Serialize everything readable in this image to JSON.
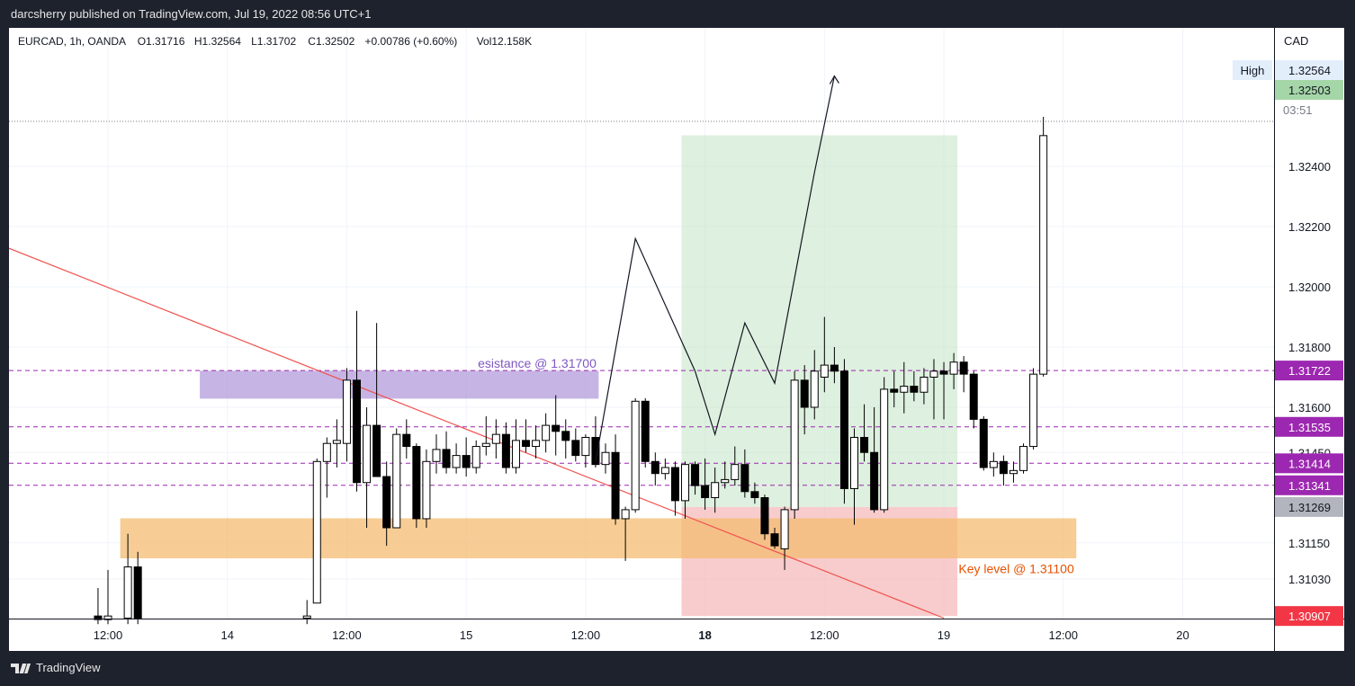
{
  "header": {
    "publisher_line": "darcsherry published on TradingView.com, Jul 19, 2022 08:56 UTC+1"
  },
  "footer": {
    "brand": "TradingView"
  },
  "chart_data": {
    "type": "candlestick",
    "symbol": "EURCAD, 1h, OANDA",
    "ohlc_legend": {
      "o": "O1.31716",
      "h": "H1.32564",
      "l": "L1.31702",
      "c": "C1.32502",
      "change": "+0.00786 (+0.60%)",
      "vol": "Vol12.158K"
    },
    "currency": "CAD",
    "ylim": [
      1.309,
      1.3273
    ],
    "y_ticks": [
      "1.32400",
      "1.32200",
      "1.32000",
      "1.31800",
      "1.31600",
      "1.31450",
      "1.31150",
      "1.31030"
    ],
    "x_ticks": [
      {
        "label": "12:00",
        "idx": 0,
        "bold": false
      },
      {
        "label": "14",
        "idx": 12,
        "bold": false
      },
      {
        "label": "12:00",
        "idx": 24,
        "bold": false
      },
      {
        "label": "15",
        "idx": 36,
        "bold": false
      },
      {
        "label": "12:00",
        "idx": 48,
        "bold": false
      },
      {
        "label": "18",
        "idx": 60,
        "bold": true
      },
      {
        "label": "12:00",
        "idx": 72,
        "bold": false
      },
      {
        "label": "19",
        "idx": 84,
        "bold": false
      },
      {
        "label": "12:00",
        "idx": 96,
        "bold": false
      },
      {
        "label": "20",
        "idx": 108,
        "bold": false
      }
    ],
    "candles": [
      {
        "i": -1,
        "o": 1.30907,
        "h": 1.31,
        "l": 1.3088,
        "c": 1.30895
      },
      {
        "i": 0,
        "o": 1.30895,
        "h": 1.3106,
        "l": 1.3088,
        "c": 1.30907
      },
      {
        "i": 2,
        "o": 1.309,
        "h": 1.3118,
        "l": 1.3088,
        "c": 1.3107
      },
      {
        "i": 3,
        "o": 1.3107,
        "h": 1.3112,
        "l": 1.3088,
        "c": 1.309
      },
      {
        "i": 20,
        "o": 1.309,
        "h": 1.3096,
        "l": 1.3088,
        "c": 1.30907
      },
      {
        "i": 21,
        "o": 1.3095,
        "h": 1.3143,
        "l": 1.3095,
        "c": 1.3142
      },
      {
        "i": 22,
        "o": 1.3142,
        "h": 1.315,
        "l": 1.313,
        "c": 1.3148
      },
      {
        "i": 23,
        "o": 1.3148,
        "h": 1.3156,
        "l": 1.314,
        "c": 1.3149
      },
      {
        "i": 24,
        "o": 1.3148,
        "h": 1.3173,
        "l": 1.3142,
        "c": 1.3169
      },
      {
        "i": 25,
        "o": 1.3169,
        "h": 1.3192,
        "l": 1.3132,
        "c": 1.3135
      },
      {
        "i": 26,
        "o": 1.3135,
        "h": 1.316,
        "l": 1.312,
        "c": 1.3154
      },
      {
        "i": 27,
        "o": 1.3154,
        "h": 1.3188,
        "l": 1.3137,
        "c": 1.3137
      },
      {
        "i": 28,
        "o": 1.3137,
        "h": 1.3142,
        "l": 1.3114,
        "c": 1.312
      },
      {
        "i": 29,
        "o": 1.312,
        "h": 1.3153,
        "l": 1.312,
        "c": 1.3151
      },
      {
        "i": 30,
        "o": 1.3151,
        "h": 1.3156,
        "l": 1.3143,
        "c": 1.3147
      },
      {
        "i": 31,
        "o": 1.3147,
        "h": 1.3148,
        "l": 1.312,
        "c": 1.3123
      },
      {
        "i": 32,
        "o": 1.3123,
        "h": 1.3146,
        "l": 1.312,
        "c": 1.3142
      },
      {
        "i": 33,
        "o": 1.3142,
        "h": 1.3151,
        "l": 1.3138,
        "c": 1.3146
      },
      {
        "i": 34,
        "o": 1.3146,
        "h": 1.3152,
        "l": 1.3138,
        "c": 1.314
      },
      {
        "i": 35,
        "o": 1.314,
        "h": 1.3148,
        "l": 1.3138,
        "c": 1.3144
      },
      {
        "i": 36,
        "o": 1.3144,
        "h": 1.315,
        "l": 1.3137,
        "c": 1.314
      },
      {
        "i": 37,
        "o": 1.314,
        "h": 1.3149,
        "l": 1.3138,
        "c": 1.3147
      },
      {
        "i": 38,
        "o": 1.3147,
        "h": 1.3157,
        "l": 1.3144,
        "c": 1.3148
      },
      {
        "i": 39,
        "o": 1.3148,
        "h": 1.3156,
        "l": 1.3143,
        "c": 1.3151
      },
      {
        "i": 40,
        "o": 1.3151,
        "h": 1.3155,
        "l": 1.3138,
        "c": 1.314
      },
      {
        "i": 41,
        "o": 1.314,
        "h": 1.3156,
        "l": 1.3138,
        "c": 1.3149
      },
      {
        "i": 42,
        "o": 1.3149,
        "h": 1.3156,
        "l": 1.3145,
        "c": 1.3147
      },
      {
        "i": 43,
        "o": 1.3147,
        "h": 1.3154,
        "l": 1.3143,
        "c": 1.3149
      },
      {
        "i": 44,
        "o": 1.3149,
        "h": 1.3158,
        "l": 1.3145,
        "c": 1.3154
      },
      {
        "i": 45,
        "o": 1.3154,
        "h": 1.3164,
        "l": 1.3144,
        "c": 1.3152
      },
      {
        "i": 46,
        "o": 1.3152,
        "h": 1.3156,
        "l": 1.3143,
        "c": 1.3149
      },
      {
        "i": 47,
        "o": 1.3149,
        "h": 1.3153,
        "l": 1.3142,
        "c": 1.3144
      },
      {
        "i": 48,
        "o": 1.3144,
        "h": 1.3151,
        "l": 1.314,
        "c": 1.315
      },
      {
        "i": 49,
        "o": 1.315,
        "h": 1.3157,
        "l": 1.314,
        "c": 1.3141
      },
      {
        "i": 50,
        "o": 1.3141,
        "h": 1.3148,
        "l": 1.3138,
        "c": 1.3145
      },
      {
        "i": 51,
        "o": 1.3145,
        "h": 1.3151,
        "l": 1.3121,
        "c": 1.3123
      },
      {
        "i": 52,
        "o": 1.3123,
        "h": 1.3127,
        "l": 1.3109,
        "c": 1.3126
      },
      {
        "i": 53,
        "o": 1.3126,
        "h": 1.3163,
        "l": 1.3125,
        "c": 1.3162
      },
      {
        "i": 54,
        "o": 1.3162,
        "h": 1.3163,
        "l": 1.314,
        "c": 1.3142
      },
      {
        "i": 55,
        "o": 1.3142,
        "h": 1.3145,
        "l": 1.3134,
        "c": 1.3138
      },
      {
        "i": 56,
        "o": 1.3138,
        "h": 1.3143,
        "l": 1.3136,
        "c": 1.314
      },
      {
        "i": 57,
        "o": 1.314,
        "h": 1.3142,
        "l": 1.3124,
        "c": 1.3129
      },
      {
        "i": 58,
        "o": 1.3129,
        "h": 1.3142,
        "l": 1.3123,
        "c": 1.3141
      },
      {
        "i": 59,
        "o": 1.3141,
        "h": 1.3142,
        "l": 1.3131,
        "c": 1.3134
      },
      {
        "i": 60,
        "o": 1.3134,
        "h": 1.3143,
        "l": 1.3126,
        "c": 1.313
      },
      {
        "i": 61,
        "o": 1.313,
        "h": 1.314,
        "l": 1.3125,
        "c": 1.3135
      },
      {
        "i": 62,
        "o": 1.3135,
        "h": 1.3142,
        "l": 1.3133,
        "c": 1.3136
      },
      {
        "i": 63,
        "o": 1.3136,
        "h": 1.3147,
        "l": 1.3134,
        "c": 1.3141
      },
      {
        "i": 64,
        "o": 1.3141,
        "h": 1.3146,
        "l": 1.313,
        "c": 1.3132
      },
      {
        "i": 65,
        "o": 1.3132,
        "h": 1.3135,
        "l": 1.3128,
        "c": 1.313
      },
      {
        "i": 66,
        "o": 1.313,
        "h": 1.3131,
        "l": 1.3116,
        "c": 1.3118
      },
      {
        "i": 67,
        "o": 1.3118,
        "h": 1.312,
        "l": 1.3113,
        "c": 1.3114
      },
      {
        "i": 68,
        "o": 1.3113,
        "h": 1.3127,
        "l": 1.3106,
        "c": 1.3126
      },
      {
        "i": 69,
        "o": 1.3126,
        "h": 1.3172,
        "l": 1.3123,
        "c": 1.3169
      },
      {
        "i": 70,
        "o": 1.3169,
        "h": 1.3174,
        "l": 1.3151,
        "c": 1.316
      },
      {
        "i": 71,
        "o": 1.316,
        "h": 1.3179,
        "l": 1.3156,
        "c": 1.3172
      },
      {
        "i": 72,
        "o": 1.317,
        "h": 1.319,
        "l": 1.3165,
        "c": 1.3174
      },
      {
        "i": 73,
        "o": 1.3174,
        "h": 1.318,
        "l": 1.3168,
        "c": 1.3172
      },
      {
        "i": 74,
        "o": 1.3172,
        "h": 1.3176,
        "l": 1.3128,
        "c": 1.3133
      },
      {
        "i": 75,
        "o": 1.3133,
        "h": 1.3153,
        "l": 1.3121,
        "c": 1.315
      },
      {
        "i": 76,
        "o": 1.315,
        "h": 1.3161,
        "l": 1.3142,
        "c": 1.3145
      },
      {
        "i": 77,
        "o": 1.3145,
        "h": 1.316,
        "l": 1.3125,
        "c": 1.3126
      },
      {
        "i": 78,
        "o": 1.3126,
        "h": 1.317,
        "l": 1.3125,
        "c": 1.3166
      },
      {
        "i": 79,
        "o": 1.3166,
        "h": 1.3172,
        "l": 1.316,
        "c": 1.3165
      },
      {
        "i": 80,
        "o": 1.3165,
        "h": 1.3175,
        "l": 1.3158,
        "c": 1.3167
      },
      {
        "i": 81,
        "o": 1.3167,
        "h": 1.3172,
        "l": 1.3162,
        "c": 1.3165
      },
      {
        "i": 82,
        "o": 1.3165,
        "h": 1.3173,
        "l": 1.3161,
        "c": 1.317
      },
      {
        "i": 83,
        "o": 1.317,
        "h": 1.3176,
        "l": 1.3156,
        "c": 1.3172
      },
      {
        "i": 84,
        "o": 1.3172,
        "h": 1.3175,
        "l": 1.3156,
        "c": 1.3171
      },
      {
        "i": 85,
        "o": 1.3171,
        "h": 1.3178,
        "l": 1.3166,
        "c": 1.3175
      },
      {
        "i": 86,
        "o": 1.3175,
        "h": 1.3177,
        "l": 1.3165,
        "c": 1.3171
      },
      {
        "i": 87,
        "o": 1.3171,
        "h": 1.3172,
        "l": 1.3153,
        "c": 1.3156
      },
      {
        "i": 88,
        "o": 1.3156,
        "h": 1.3157,
        "l": 1.3139,
        "c": 1.314
      },
      {
        "i": 89,
        "o": 1.314,
        "h": 1.3145,
        "l": 1.3137,
        "c": 1.3142
      },
      {
        "i": 90,
        "o": 1.3142,
        "h": 1.3144,
        "l": 1.3134,
        "c": 1.3138
      },
      {
        "i": 91,
        "o": 1.3138,
        "h": 1.3142,
        "l": 1.3135,
        "c": 1.3139
      },
      {
        "i": 92,
        "o": 1.3139,
        "h": 1.3148,
        "l": 1.3138,
        "c": 1.3147
      },
      {
        "i": 93,
        "o": 1.3147,
        "h": 1.3173,
        "l": 1.3146,
        "c": 1.3171
      },
      {
        "i": 94,
        "o": 1.3171,
        "h": 1.32564,
        "l": 1.31702,
        "c": 1.32502
      }
    ],
    "horizontal_lines": [
      {
        "price": 1.31722,
        "style": "dashed",
        "color": "#9c27b0",
        "tag": "1.31722"
      },
      {
        "price": 1.31535,
        "style": "dashed",
        "color": "#9c27b0",
        "tag": "1.31535"
      },
      {
        "price": 1.31414,
        "style": "dashed",
        "color": "#9c27b0",
        "tag": "1.31414"
      },
      {
        "price": 1.31341,
        "style": "dashed",
        "color": "#9c27b0",
        "tag": "1.31341"
      }
    ],
    "zones": [
      {
        "name": "resistance-zone",
        "from_idx": 10,
        "to_idx": 48,
        "top": 1.3172,
        "bottom": 1.3163,
        "color": "#b39ddb",
        "label": "esistance @ 1.31700",
        "label_color": "#7e57c2"
      },
      {
        "name": "key-level-zone",
        "from_idx": 2,
        "to_idx": 96,
        "top": 1.3123,
        "bottom": 1.311,
        "color": "#f5bd72",
        "label": "Key level @ 1.31100",
        "label_color": "#e65100"
      }
    ],
    "position": {
      "from_idx": 58,
      "to_idx": 85,
      "entry": 1.31269,
      "target": 1.32503,
      "stop": 1.30907
    },
    "projection_paths": [
      {
        "name": "projection-1",
        "points": [
          [
            49,
            1.3142
          ],
          [
            53,
            1.3216
          ],
          [
            59,
            1.3172
          ]
        ]
      },
      {
        "name": "projection-2",
        "points": [
          [
            59,
            1.3172
          ],
          [
            61,
            1.3151
          ],
          [
            64,
            1.3188
          ],
          [
            67,
            1.3168
          ],
          [
            71,
            1.3238
          ],
          [
            73,
            1.327
          ]
        ]
      }
    ],
    "trendline": {
      "start": [
        -17,
        1.3222
      ],
      "end": [
        84,
        1.309
      ],
      "color": "#ef5350"
    },
    "price_tags": [
      {
        "name": "high-tag",
        "value": "1.32564",
        "bg": "#e3eefb",
        "fg": "#131722",
        "label": "High"
      },
      {
        "name": "last-price-tag",
        "value": "1.32503",
        "bg": "#a5d6a7",
        "fg": "#131722",
        "countdown": "03:51"
      },
      {
        "name": "tag-1.31722",
        "value": "1.31722",
        "bg": "#9c27b0",
        "fg": "#ffffff"
      },
      {
        "name": "tag-1.31535",
        "value": "1.31535",
        "bg": "#9c27b0",
        "fg": "#ffffff"
      },
      {
        "name": "tag-1.31414",
        "value": "1.31414",
        "bg": "#9c27b0",
        "fg": "#ffffff"
      },
      {
        "name": "tag-1.31341",
        "value": "1.31341",
        "bg": "#9c27b0",
        "fg": "#ffffff"
      },
      {
        "name": "entry-tag",
        "value": "1.31269",
        "bg": "#b2b5be",
        "fg": "#131722"
      },
      {
        "name": "stop-tag",
        "value": "1.30907",
        "bg": "#f23645",
        "fg": "#ffffff"
      }
    ],
    "colors": {
      "up": "#ffffff",
      "down": "#000000",
      "wick": "#000000",
      "grid": "#f0f3fa",
      "axis": "#131722"
    }
  }
}
